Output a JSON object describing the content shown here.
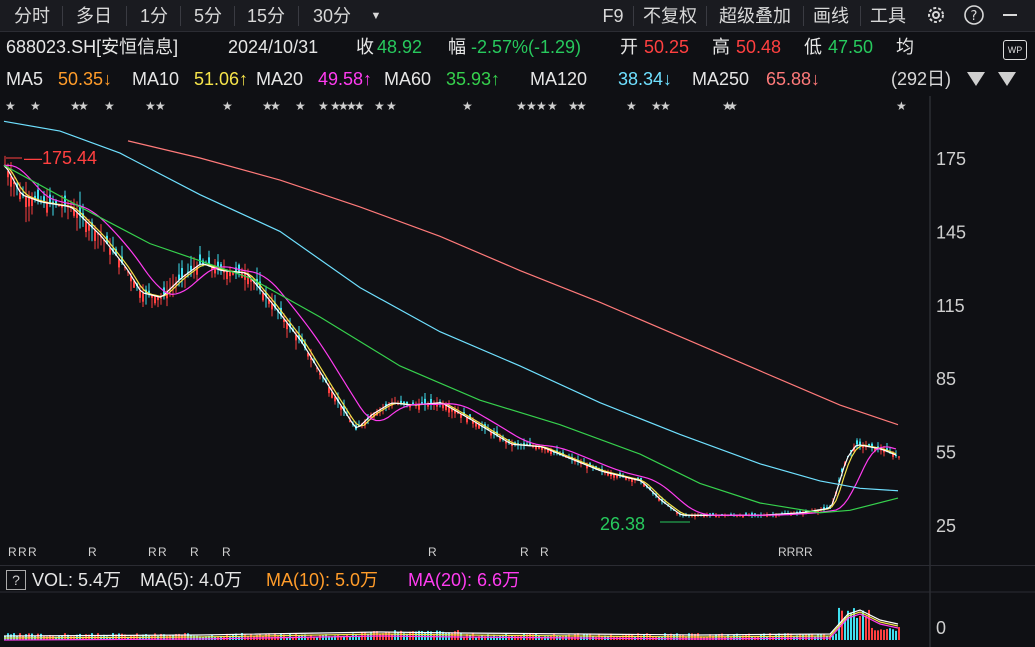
{
  "toolbar": {
    "tabs": [
      {
        "label": "分时"
      },
      {
        "label": "多日"
      },
      {
        "label": "1分"
      },
      {
        "label": "5分"
      },
      {
        "label": "15分"
      },
      {
        "label": "30分"
      }
    ],
    "dropdown_glyph": "▼",
    "right": [
      {
        "label": "F9"
      },
      {
        "label": "不复权"
      },
      {
        "label": "超级叠加"
      },
      {
        "label": "画线"
      },
      {
        "label": "工具"
      }
    ],
    "icons": [
      "gear-icon",
      "help-icon",
      "minimize-icon"
    ]
  },
  "quote": {
    "symbol": "688023.SH[安恒信息]",
    "date": "2024/10/31",
    "close_label": "收",
    "close": "48.92",
    "change_label": "幅",
    "change": "-2.57%(-1.29)",
    "open_label": "开",
    "open": "50.25",
    "high_label": "高",
    "high": "50.48",
    "low_label": "低",
    "low": "47.50",
    "avg_label": "均",
    "wp": "WP"
  },
  "ma": {
    "items": [
      {
        "label": "MA5",
        "value": "50.35↓",
        "color": "#ff9c2a"
      },
      {
        "label": "MA10",
        "value": "51.06↑",
        "color": "#f5e34a"
      },
      {
        "label": "MA20",
        "value": "49.58↑",
        "color": "#ff3cf0"
      },
      {
        "label": "MA60",
        "value": "35.93↑",
        "color": "#36d14d"
      },
      {
        "label": "MA120",
        "value": "38.34↓",
        "color": "#6fe0ff"
      },
      {
        "label": "MA250",
        "value": "65.88↓",
        "color": "#ff7a7a"
      }
    ],
    "period": "(292日)"
  },
  "chart_data": {
    "type": "candlestick",
    "y_ticks": [
      "175",
      "145",
      "115",
      "85",
      "55",
      "25"
    ],
    "max_label": "175.44",
    "min_label": "26.38",
    "r_marks": [
      "R",
      "R",
      "R",
      "R",
      "R",
      "R",
      "R",
      "R",
      "R",
      "R",
      "R"
    ],
    "volume_axis": "0"
  },
  "volume": {
    "vol_label": "VOL: 5.4万",
    "ma5_label": "MA(5): 4.0万",
    "ma10_label": "MA(10): 5.0万",
    "ma20_label": "MA(20): 6.6万",
    "help": "?"
  }
}
